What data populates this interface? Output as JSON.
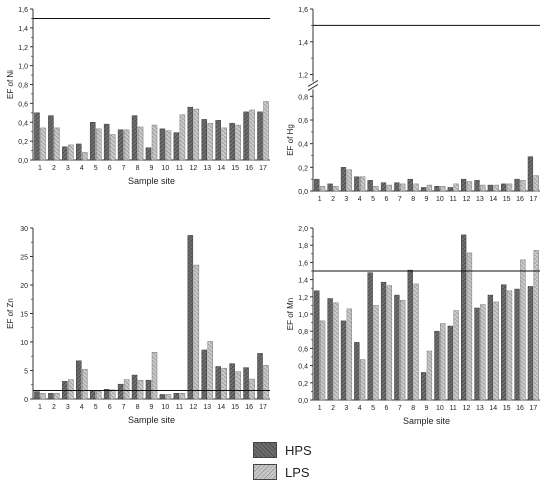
{
  "colors": {
    "HPS": "#6e6e6e",
    "LPS": "#c4c4c4",
    "axis": "#333333"
  },
  "legend": {
    "items": [
      {
        "name": "HPS",
        "color": "#6e6e6e"
      },
      {
        "name": "LPS",
        "color": "#c4c4c4"
      }
    ]
  },
  "chart_data": [
    {
      "type": "bar",
      "id": "ni",
      "ylabel": "EF of Ni",
      "xlabel": "Sample site",
      "categories": [
        "1",
        "2",
        "3",
        "4",
        "5",
        "6",
        "7",
        "8",
        "9",
        "10",
        "11",
        "12",
        "13",
        "14",
        "15",
        "16",
        "17"
      ],
      "ylim": [
        0,
        1.6
      ],
      "yticks": [
        0,
        0.2,
        0.4,
        0.6,
        0.8,
        1.0,
        1.2,
        1.4,
        1.6
      ],
      "yticklabels": [
        "0,0",
        "0,2",
        "0,4",
        "0,6",
        "0,8",
        "1,0",
        "1,2",
        "1,4",
        "1,6"
      ],
      "reference_line": 1.5,
      "series": [
        {
          "name": "HPS",
          "values": [
            0.5,
            0.47,
            0.14,
            0.17,
            0.4,
            0.38,
            0.32,
            0.47,
            0.13,
            0.33,
            0.29,
            0.56,
            0.43,
            0.42,
            0.39,
            0.51,
            0.51
          ]
        },
        {
          "name": "LPS",
          "values": [
            0.34,
            0.34,
            0.16,
            0.08,
            0.33,
            0.27,
            0.32,
            0.35,
            0.37,
            0.31,
            0.48,
            0.54,
            0.39,
            0.34,
            0.37,
            0.53,
            0.62
          ]
        }
      ]
    },
    {
      "type": "bar",
      "id": "hg",
      "ylabel": "EF of Hg",
      "xlabel": "",
      "categories": [
        "1",
        "2",
        "3",
        "4",
        "5",
        "6",
        "7",
        "8",
        "9",
        "10",
        "11",
        "12",
        "13",
        "14",
        "15",
        "16",
        "17"
      ],
      "axis_break": {
        "lower": [
          0,
          0.8
        ],
        "upper": [
          1.2,
          1.6
        ]
      },
      "yticks": [
        0,
        0.2,
        0.4,
        0.6,
        0.8,
        1.2,
        1.4,
        1.6
      ],
      "yticklabels": [
        "0,0",
        "0,2",
        "0,4",
        "0,6",
        "0,8",
        "1,2",
        "1,4",
        "1,6"
      ],
      "reference_line": 1.5,
      "series": [
        {
          "name": "HPS",
          "values": [
            0.1,
            0.06,
            0.2,
            0.12,
            0.09,
            0.07,
            0.07,
            0.1,
            0.03,
            0.04,
            0.03,
            0.1,
            0.09,
            0.05,
            0.06,
            0.1,
            0.29
          ]
        },
        {
          "name": "LPS",
          "values": [
            0.04,
            0.04,
            0.18,
            0.12,
            0.04,
            0.05,
            0.06,
            0.06,
            0.05,
            0.04,
            0.06,
            0.08,
            0.05,
            0.05,
            0.06,
            0.09,
            0.13
          ]
        }
      ]
    },
    {
      "type": "bar",
      "id": "zn",
      "ylabel": "EF of Zn",
      "xlabel": "Sample site",
      "categories": [
        "1",
        "2",
        "3",
        "4",
        "5",
        "6",
        "7",
        "8",
        "9",
        "10",
        "11",
        "12",
        "13",
        "14",
        "15",
        "16",
        "17"
      ],
      "ylim": [
        0,
        30
      ],
      "yticks": [
        0,
        5,
        10,
        15,
        20,
        25,
        30
      ],
      "yticklabels": [
        "0",
        "5",
        "10",
        "15",
        "20",
        "25",
        "30"
      ],
      "reference_line": 1.5,
      "series": [
        {
          "name": "HPS",
          "values": [
            1.3,
            1.0,
            3.1,
            6.7,
            1.5,
            1.7,
            2.6,
            4.2,
            3.3,
            0.8,
            1.0,
            28.7,
            8.6,
            5.7,
            6.2,
            5.5,
            8.0
          ]
        },
        {
          "name": "LPS",
          "values": [
            1.0,
            1.0,
            3.4,
            5.2,
            1.4,
            1.6,
            3.4,
            3.3,
            8.2,
            0.8,
            1.0,
            23.5,
            10.1,
            5.4,
            4.8,
            3.5,
            5.9
          ]
        }
      ]
    },
    {
      "type": "bar",
      "id": "mn",
      "ylabel": "EF of Mn",
      "xlabel": "Sample site",
      "categories": [
        "1",
        "2",
        "3",
        "4",
        "5",
        "6",
        "7",
        "8",
        "9",
        "10",
        "11",
        "12",
        "13",
        "14",
        "15",
        "16",
        "17"
      ],
      "ylim": [
        0,
        2.0
      ],
      "yticks": [
        0,
        0.2,
        0.4,
        0.6,
        0.8,
        1.0,
        1.2,
        1.4,
        1.6,
        1.8,
        2.0
      ],
      "yticklabels": [
        "0,0",
        "0,2",
        "0,4",
        "0,6",
        "0,8",
        "1,0",
        "1,2",
        "1,4",
        "1,6",
        "1,8",
        "2,0"
      ],
      "reference_line": 1.5,
      "series": [
        {
          "name": "HPS",
          "values": [
            1.27,
            1.18,
            0.92,
            0.67,
            1.48,
            1.37,
            1.22,
            1.51,
            0.32,
            0.8,
            0.86,
            1.92,
            1.07,
            1.22,
            1.34,
            1.29,
            1.32
          ]
        },
        {
          "name": "LPS",
          "values": [
            0.92,
            1.13,
            1.06,
            0.47,
            1.1,
            1.33,
            1.16,
            1.35,
            0.57,
            0.89,
            1.04,
            1.71,
            1.11,
            1.14,
            1.27,
            1.63,
            1.74
          ]
        }
      ]
    }
  ]
}
